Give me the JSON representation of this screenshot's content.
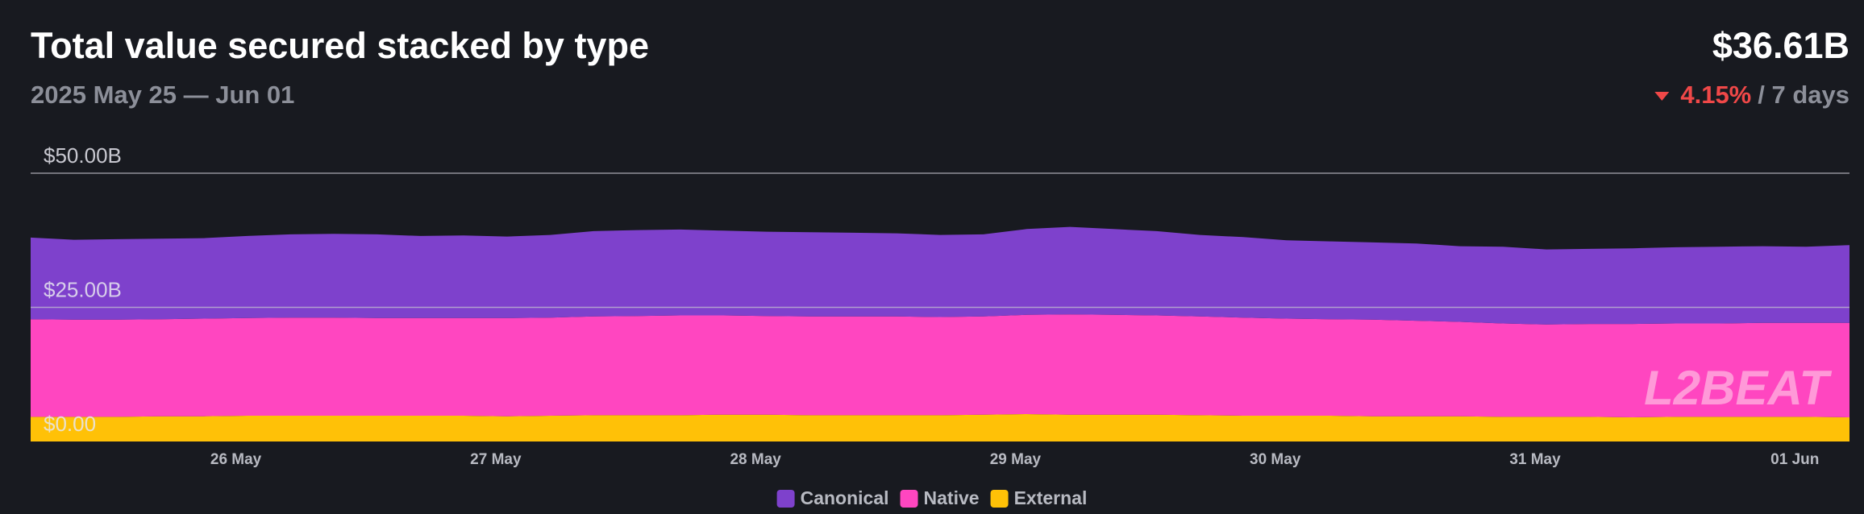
{
  "chart_data": {
    "type": "stacked_area",
    "title": "Total value secured stacked by type",
    "subtitle": "2025 May 25 — Jun 01",
    "total_label": "$36.61B",
    "change_label": "4.15%",
    "period_label": "/ 7 days",
    "watermark": "L2BEAT",
    "categories": [
      null,
      null,
      null,
      null,
      null,
      "26 May",
      null,
      null,
      null,
      null,
      null,
      "27 May",
      null,
      null,
      null,
      null,
      null,
      "28 May",
      null,
      null,
      null,
      null,
      null,
      "29 May",
      null,
      null,
      null,
      null,
      null,
      "30 May",
      null,
      null,
      null,
      null,
      null,
      "31 May",
      null,
      null,
      null,
      null,
      null,
      "01 Jun",
      null
    ],
    "series": [
      {
        "name": "Canonical",
        "color": "#7e41cc",
        "values": [
          15.2,
          14.9,
          15.0,
          15.0,
          15.0,
          15.3,
          15.5,
          15.6,
          15.6,
          15.3,
          15.4,
          15.2,
          15.4,
          15.9,
          16.0,
          16.0,
          15.8,
          15.7,
          15.7,
          15.6,
          15.5,
          15.3,
          15.3,
          16.0,
          16.3,
          16.0,
          15.7,
          15.2,
          15.0,
          14.6,
          14.5,
          14.4,
          14.4,
          14.1,
          14.3,
          14.0,
          14.0,
          14.1,
          14.2,
          14.3,
          14.3,
          14.2,
          14.5
        ]
      },
      {
        "name": "Native",
        "color": "#ff46c0",
        "values": [
          18.2,
          18.1,
          18.1,
          18.1,
          18.2,
          18.2,
          18.3,
          18.3,
          18.2,
          18.2,
          18.2,
          18.3,
          18.3,
          18.4,
          18.5,
          18.6,
          18.5,
          18.4,
          18.4,
          18.4,
          18.4,
          18.3,
          18.3,
          18.5,
          18.7,
          18.6,
          18.5,
          18.4,
          18.3,
          18.1,
          18.0,
          18.0,
          17.8,
          17.6,
          17.4,
          17.2,
          17.3,
          17.4,
          17.4,
          17.4,
          17.5,
          17.5,
          17.6
        ]
      },
      {
        "name": "External",
        "color": "#ffc107",
        "values": [
          4.6,
          4.6,
          4.6,
          4.7,
          4.7,
          4.8,
          4.8,
          4.8,
          4.8,
          4.8,
          4.8,
          4.7,
          4.8,
          4.9,
          4.9,
          4.9,
          5.0,
          5.0,
          4.9,
          4.9,
          4.9,
          4.9,
          5.0,
          5.1,
          5.0,
          5.0,
          5.0,
          4.9,
          4.8,
          4.8,
          4.8,
          4.7,
          4.7,
          4.7,
          4.6,
          4.6,
          4.6,
          4.5,
          4.6,
          4.6,
          4.6,
          4.6,
          4.5
        ]
      }
    ],
    "ylim": [
      0,
      50
    ],
    "yticks": [
      {
        "value": 0,
        "label": "$0.00"
      },
      {
        "value": 25,
        "label": "$25.00B"
      },
      {
        "value": 50,
        "label": "$50.00B"
      }
    ],
    "grid": true
  }
}
